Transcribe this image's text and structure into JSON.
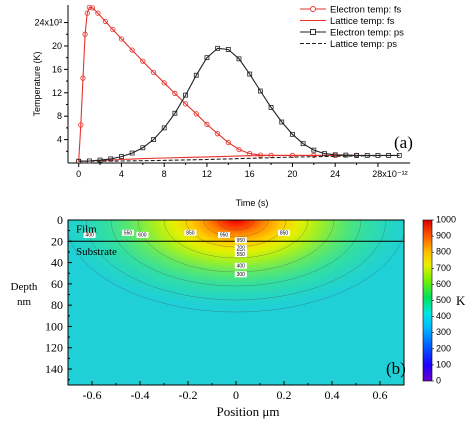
{
  "chart_data": [
    {
      "type": "line",
      "panel_label": "(a)",
      "xlabel": "Time (s)",
      "ylabel": "Temperature (K)",
      "xlim": [
        -1,
        31
      ],
      "ylim": [
        0,
        27
      ],
      "x_ticks": [
        "0",
        "4",
        "8",
        "12",
        "16",
        "20",
        "24",
        "28x10⁻¹²"
      ],
      "x_tick_values": [
        0,
        4,
        8,
        12,
        16,
        20,
        24,
        28
      ],
      "y_ticks": [
        "4",
        "8",
        "12",
        "16",
        "20",
        "24x10³"
      ],
      "y_tick_values": [
        4,
        8,
        12,
        16,
        20,
        24
      ],
      "legend_position": "top-right",
      "series": [
        {
          "name": "Electron temp: fs",
          "color": "#e8312a",
          "marker": "circle",
          "line_style": "solid",
          "x": [
            0,
            0.2,
            0.4,
            0.6,
            0.8,
            1,
            1.3,
            1.8,
            2.5,
            3.2,
            4,
            5,
            6,
            7,
            8,
            9,
            10,
            11,
            12,
            13,
            14,
            15,
            16,
            17,
            18,
            20,
            22,
            24,
            26
          ],
          "y": [
            0.3,
            6.5,
            14.5,
            22,
            25.6,
            26.6,
            26.5,
            25.6,
            24.2,
            22.8,
            21.2,
            19.3,
            17.4,
            15.5,
            13.7,
            11.9,
            10.1,
            8.4,
            6.6,
            5,
            3.5,
            2.3,
            1.6,
            1.35,
            1.3,
            1.3,
            1.3,
            1.3,
            1.3
          ]
        },
        {
          "name": "Lattice temp: fs",
          "color": "#e8312a",
          "marker": "none",
          "line_style": "solid",
          "x": [
            0,
            1,
            2,
            4,
            6,
            8,
            10,
            12,
            14,
            16,
            18,
            20,
            22,
            24,
            26
          ],
          "y": [
            0.3,
            0.35,
            0.45,
            0.6,
            0.75,
            0.85,
            0.95,
            1.05,
            1.15,
            1.25,
            1.3,
            1.3,
            1.3,
            1.3,
            1.3
          ]
        },
        {
          "name": "Electron temp: ps",
          "color": "#222222",
          "marker": "square",
          "line_style": "solid",
          "x": [
            0,
            1,
            2,
            3,
            4,
            5,
            6,
            7,
            8,
            9,
            10,
            11,
            12,
            13,
            14,
            15,
            16,
            17,
            18,
            19,
            20,
            21,
            22,
            23,
            24,
            25,
            26,
            27,
            28,
            29,
            30
          ],
          "y": [
            0.3,
            0.35,
            0.5,
            0.7,
            1.1,
            1.7,
            2.6,
            4,
            6,
            8.5,
            11.6,
            15,
            18,
            19.6,
            19.4,
            17.8,
            15.2,
            12.3,
            9.5,
            7,
            4.9,
            3.3,
            2.2,
            1.6,
            1.4,
            1.35,
            1.3,
            1.3,
            1.3,
            1.3,
            1.3
          ]
        },
        {
          "name": "Lattice temp: ps",
          "color": "#222222",
          "marker": "none",
          "line_style": "dashed",
          "x": [
            0,
            4,
            8,
            12,
            16,
            20,
            24,
            28,
            30
          ],
          "y": [
            0.3,
            0.35,
            0.45,
            0.6,
            0.8,
            1,
            1.15,
            1.25,
            1.3
          ]
        }
      ]
    },
    {
      "type": "heatmap",
      "panel_label": "(b)",
      "xlabel": "Position μm",
      "ylabel": "Depth\nnm",
      "ylabel_lines": [
        "Depth",
        "nm"
      ],
      "xlim": [
        -0.7,
        0.7
      ],
      "ylim": [
        155,
        0
      ],
      "x_ticks": [
        "-0.6",
        "-0.4",
        "-0.2",
        "0",
        "0.2",
        "0.4",
        "0.6"
      ],
      "x_tick_values": [
        -0.6,
        -0.4,
        -0.2,
        0,
        0.2,
        0.4,
        0.6
      ],
      "y_ticks": [
        "0",
        "20",
        "40",
        "60",
        "80",
        "100",
        "120",
        "140"
      ],
      "y_tick_values": [
        0,
        20,
        40,
        60,
        80,
        100,
        120,
        140
      ],
      "region_labels": [
        "Film",
        "Substrate"
      ],
      "film_thickness_nm": 20,
      "colorbar_label": "K",
      "colorbar_range": [
        0,
        1000
      ],
      "colorbar_ticks": [
        "0",
        "100",
        "200",
        "300",
        "400",
        "500",
        "600",
        "700",
        "800",
        "900",
        "1000"
      ],
      "colorbar_tick_values": [
        0,
        100,
        200,
        300,
        400,
        500,
        600,
        700,
        800,
        900,
        1000
      ],
      "contour_labels": [
        {
          "text": "400",
          "x": -0.61,
          "y": 14
        },
        {
          "text": "550",
          "x": -0.45,
          "y": 12
        },
        {
          "text": "600",
          "x": -0.39,
          "y": 14
        },
        {
          "text": "850",
          "x": -0.19,
          "y": 12
        },
        {
          "text": "950",
          "x": -0.05,
          "y": 14
        },
        {
          "text": "850",
          "x": 0.2,
          "y": 12
        },
        {
          "text": "950",
          "x": 0.02,
          "y": 19
        },
        {
          "text": "700",
          "x": 0.02,
          "y": 26
        },
        {
          "text": "650",
          "x": 0.02,
          "y": 29
        },
        {
          "text": "550",
          "x": 0.02,
          "y": 32
        },
        {
          "text": "400",
          "x": 0.02,
          "y": 43
        },
        {
          "text": "300",
          "x": 0.02,
          "y": 51
        }
      ]
    }
  ]
}
